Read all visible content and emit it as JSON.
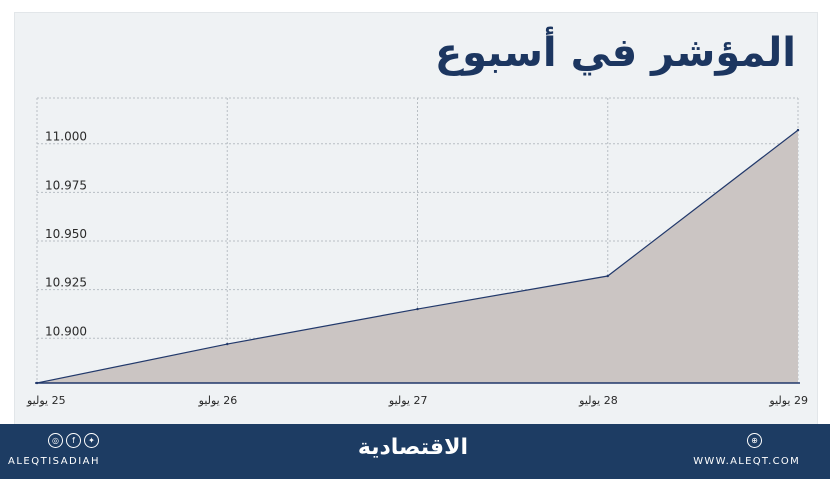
{
  "chart_data": {
    "type": "area",
    "title": "المؤشر في أسبوع",
    "x": [
      "25 يوليو",
      "26 يوليو",
      "27 يوليو",
      "28 يوليو",
      "29 يوليو"
    ],
    "series": [
      {
        "values": [
          10.877,
          10.897,
          10.915,
          10.932,
          11.007
        ]
      }
    ],
    "yticks": [
      "11.000",
      "10.975",
      "10.950",
      "10.925",
      "10.900"
    ],
    "ylim": [
      10.877,
      11.0235
    ],
    "grid": true,
    "colors": {
      "fill": "#cbc5c3",
      "line": "#22396b",
      "grid": "#b8bec3",
      "axis": "#21386b"
    }
  },
  "footer": {
    "social_handle": "ALEQTISADIAH",
    "brand": "الاقتصادية",
    "website": "WWW.ALEQT.COM",
    "icons": [
      "instagram-icon",
      "facebook-icon",
      "twitter-icon",
      "globe-icon"
    ]
  }
}
